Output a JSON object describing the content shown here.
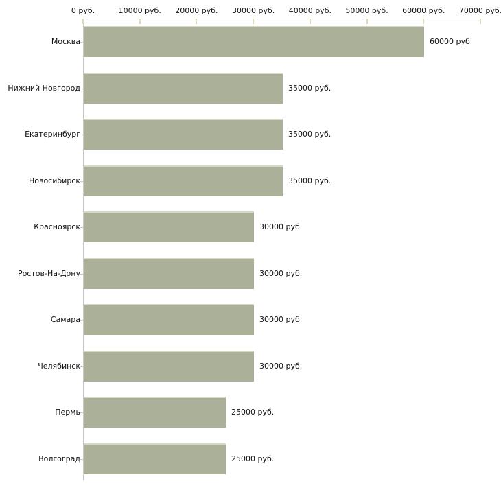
{
  "chart_data": {
    "type": "bar",
    "orientation": "horizontal",
    "title": "",
    "categories": [
      "Москва",
      "Нижний Новгород",
      "Екатеринбург",
      "Новосибирск",
      "Красноярск",
      "Ростов-На-Дону",
      "Самара",
      "Челябинск",
      "Пермь",
      "Волгоград"
    ],
    "values": [
      60000,
      35000,
      35000,
      35000,
      30000,
      30000,
      30000,
      30000,
      25000,
      25000
    ],
    "value_labels": [
      "60000 руб.",
      "35000 руб.",
      "35000 руб.",
      "35000 руб.",
      "30000 руб.",
      "30000 руб.",
      "30000 руб.",
      "30000 руб.",
      "25000 руб.",
      "25000 руб."
    ],
    "unit": "руб.",
    "x_axis": {
      "position": "top",
      "range": [
        0,
        70000
      ],
      "ticks": [
        0,
        10000,
        20000,
        30000,
        40000,
        50000,
        60000,
        70000
      ],
      "tick_labels": [
        "0 руб.",
        "10000 руб.",
        "20000 руб.",
        "30000 руб.",
        "40000 руб.",
        "50000 руб.",
        "60000 руб.",
        "70000 руб."
      ]
    },
    "grid": false,
    "legend": false,
    "colors": {
      "bar": "#abb199",
      "bar_top_edge": "#d6d9c7",
      "axis_line": "#c6c6c6",
      "axis_tick": "#d9d9b9",
      "text": "#111111",
      "background": "#ffffff"
    }
  }
}
